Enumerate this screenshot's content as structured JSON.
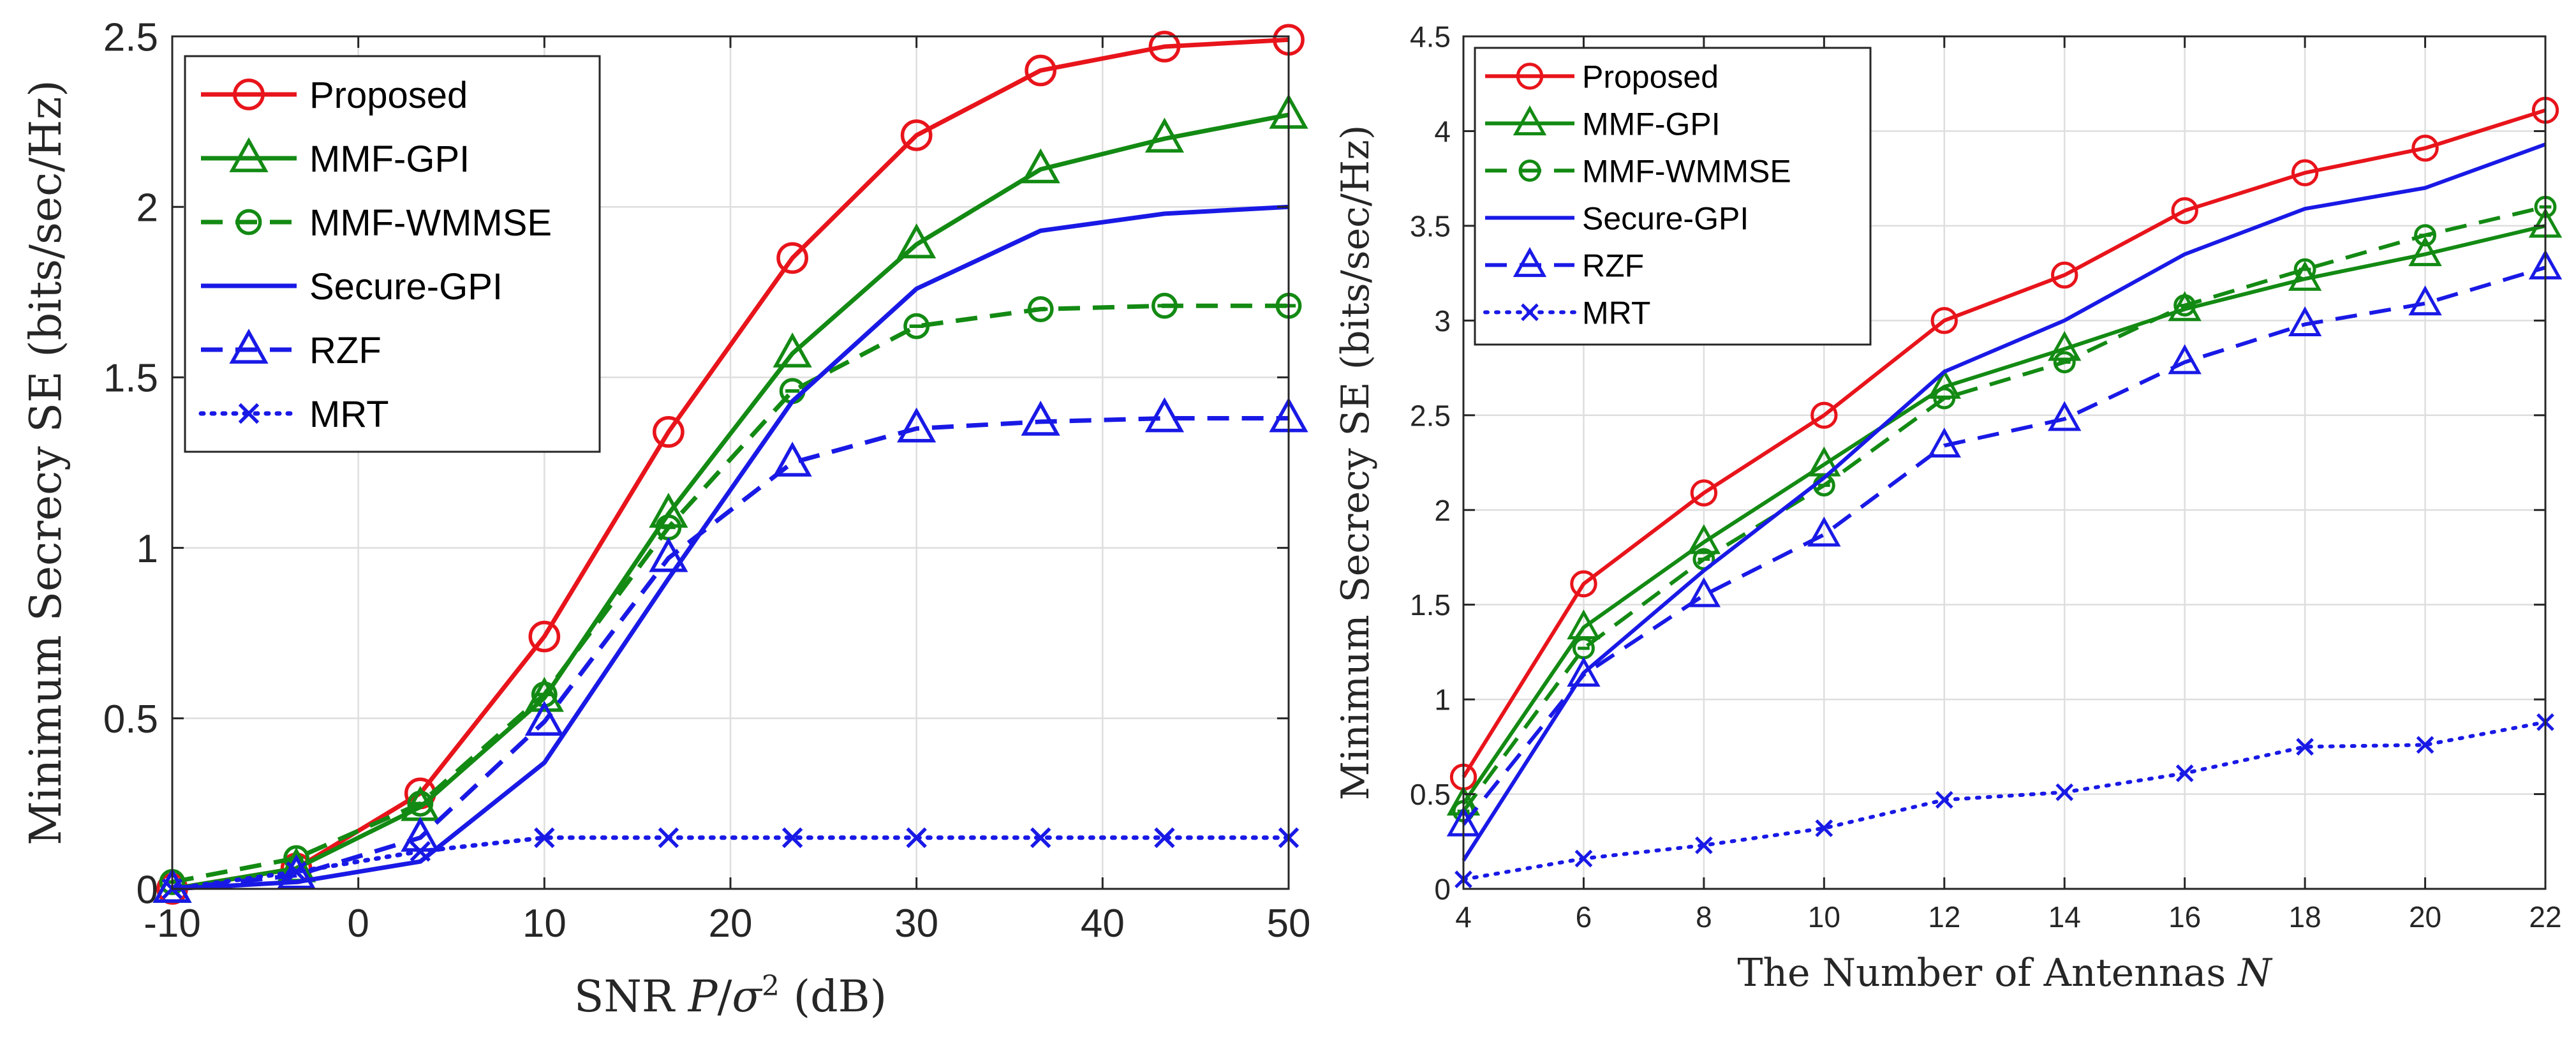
{
  "chart_data": [
    {
      "type": "line",
      "xlabel": "SNR P/σ² (dB)",
      "ylabel": "Minimum Secrecy SE (bits/sec/Hz)",
      "xlim": [
        -10,
        50
      ],
      "ylim": [
        0,
        2.5
      ],
      "xticks": [
        -10,
        0,
        10,
        20,
        30,
        40,
        50
      ],
      "yticks": [
        0,
        0.5,
        1,
        1.5,
        2,
        2.5
      ],
      "xtick_labels": [
        "-10",
        "0",
        "10",
        "20",
        "30",
        "40",
        "50"
      ],
      "ytick_labels": [
        "0",
        "0.5",
        "1",
        "1.5",
        "2",
        "2.5"
      ],
      "grid": true,
      "legend_position": "top-left",
      "x": [
        -10,
        -3.33,
        3.33,
        10,
        16.67,
        23.33,
        30,
        36.67,
        43.33,
        50
      ],
      "series": [
        {
          "name": "Proposed",
          "color": "#e8141b",
          "dash": "solid",
          "marker": "circle",
          "values": [
            0.0,
            0.06,
            0.28,
            0.74,
            1.34,
            1.85,
            2.21,
            2.4,
            2.47,
            2.49
          ]
        },
        {
          "name": "MMF-GPI",
          "color": "#138a13",
          "dash": "solid",
          "marker": "triangle",
          "values": [
            0.0,
            0.06,
            0.24,
            0.56,
            1.1,
            1.57,
            1.89,
            2.11,
            2.2,
            2.27
          ]
        },
        {
          "name": "MMF-WMMSE",
          "color": "#138a13",
          "dash": "dashed",
          "marker": "circle-minus",
          "values": [
            0.02,
            0.09,
            0.25,
            0.57,
            1.06,
            1.46,
            1.65,
            1.7,
            1.71,
            1.71
          ]
        },
        {
          "name": "Secure-GPI",
          "color": "#1919e6",
          "dash": "solid",
          "marker": "none",
          "values": [
            0.0,
            0.02,
            0.08,
            0.37,
            0.91,
            1.43,
            1.76,
            1.93,
            1.98,
            2.0
          ]
        },
        {
          "name": "RZF",
          "color": "#1919e6",
          "dash": "dashed",
          "marker": "triangle",
          "values": [
            0.0,
            0.04,
            0.15,
            0.49,
            0.97,
            1.25,
            1.35,
            1.37,
            1.38,
            1.38
          ]
        },
        {
          "name": "MRT",
          "color": "#1919e6",
          "dash": "dotted",
          "marker": "x",
          "values": [
            0.0,
            0.05,
            0.11,
            0.15,
            0.15,
            0.15,
            0.15,
            0.15,
            0.15,
            0.15
          ]
        }
      ]
    },
    {
      "type": "line",
      "xlabel": "The Number of Antennas N",
      "ylabel": "Minimum Secrecy SE (bits/sec/Hz)",
      "xlim": [
        4,
        22
      ],
      "ylim": [
        0,
        4.5
      ],
      "xticks": [
        4,
        6,
        8,
        10,
        12,
        14,
        16,
        18,
        20,
        22
      ],
      "yticks": [
        0,
        0.5,
        1,
        1.5,
        2,
        2.5,
        3,
        3.5,
        4,
        4.5
      ],
      "xtick_labels": [
        "4",
        "6",
        "8",
        "10",
        "12",
        "14",
        "16",
        "18",
        "20",
        "22"
      ],
      "ytick_labels": [
        "0",
        "0.5",
        "1",
        "1.5",
        "2",
        "2.5",
        "3",
        "3.5",
        "4",
        "4.5"
      ],
      "grid": true,
      "legend_position": "top-left",
      "x": [
        4,
        6,
        8,
        10,
        12,
        14,
        16,
        18,
        20,
        22
      ],
      "series": [
        {
          "name": "Proposed",
          "color": "#e8141b",
          "dash": "solid",
          "marker": "circle",
          "values": [
            0.59,
            1.61,
            2.09,
            2.5,
            3.0,
            3.24,
            3.58,
            3.78,
            3.91,
            4.11
          ]
        },
        {
          "name": "MMF-GPI",
          "color": "#138a13",
          "dash": "solid",
          "marker": "triangle",
          "values": [
            0.45,
            1.38,
            1.83,
            2.24,
            2.65,
            2.85,
            3.06,
            3.22,
            3.35,
            3.5
          ]
        },
        {
          "name": "MMF-WMMSE",
          "color": "#138a13",
          "dash": "dashed",
          "marker": "circle-minus",
          "values": [
            0.41,
            1.27,
            1.74,
            2.13,
            2.59,
            2.78,
            3.08,
            3.27,
            3.45,
            3.6
          ]
        },
        {
          "name": "Secure-GPI",
          "color": "#1919e6",
          "dash": "solid",
          "marker": "none",
          "values": [
            0.15,
            1.14,
            1.68,
            2.17,
            2.73,
            3.0,
            3.35,
            3.59,
            3.7,
            3.93
          ]
        },
        {
          "name": "RZF",
          "color": "#1919e6",
          "dash": "dashed",
          "marker": "triangle",
          "values": [
            0.34,
            1.13,
            1.55,
            1.87,
            2.34,
            2.48,
            2.78,
            2.98,
            3.09,
            3.28
          ]
        },
        {
          "name": "MRT",
          "color": "#1919e6",
          "dash": "dotted",
          "marker": "x",
          "values": [
            0.05,
            0.16,
            0.23,
            0.32,
            0.47,
            0.51,
            0.61,
            0.75,
            0.76,
            0.88
          ]
        }
      ]
    }
  ]
}
